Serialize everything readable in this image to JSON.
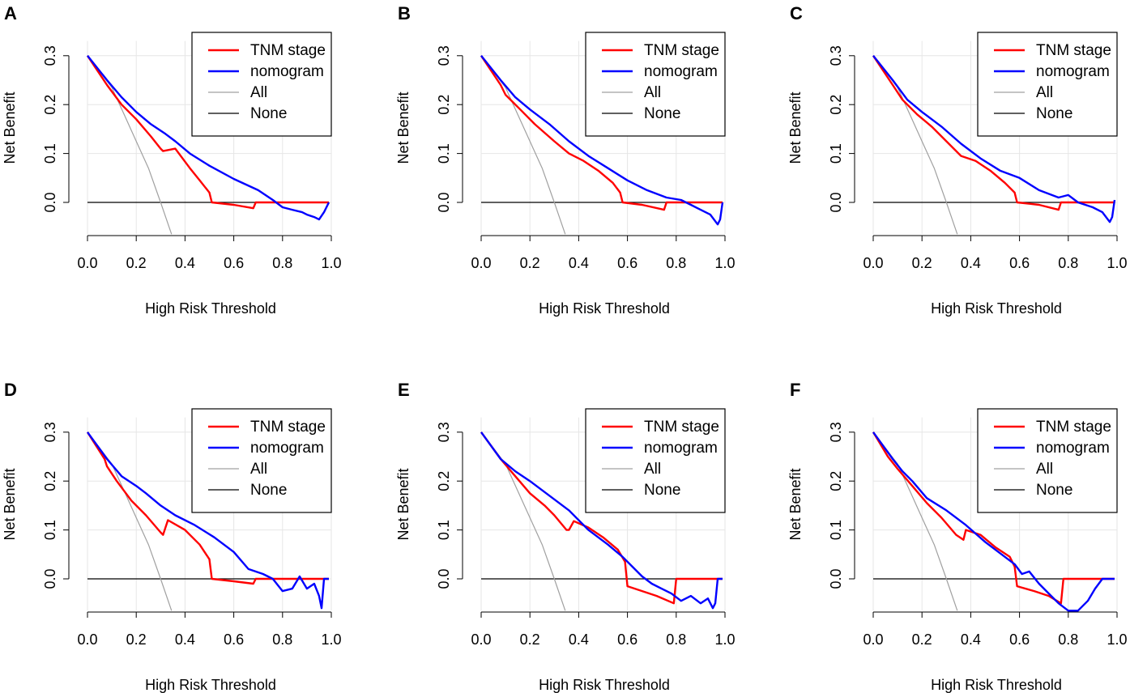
{
  "chart_data": [
    {
      "panel": "A",
      "type": "line",
      "xlabel": "High Risk Threshold",
      "ylabel": "Net Benefit",
      "xlim": [
        0,
        1
      ],
      "ylim": [
        -0.065,
        0.33
      ],
      "xticks": [
        "0.0",
        "0.2",
        "0.4",
        "0.6",
        "0.8",
        "1.0"
      ],
      "yticks": [
        "0.0",
        "0.1",
        "0.2",
        "0.3"
      ],
      "legend_position": "top-right",
      "series": [
        {
          "name": "TNM stage",
          "color": "#ff0000",
          "x": [
            0,
            0.08,
            0.14,
            0.2,
            0.26,
            0.3,
            0.31,
            0.36,
            0.42,
            0.46,
            0.5,
            0.51,
            0.6,
            0.68,
            0.69,
            0.75,
            0.85,
            0.99
          ],
          "y": [
            0.3,
            0.24,
            0.2,
            0.17,
            0.135,
            0.11,
            0.105,
            0.11,
            0.07,
            0.045,
            0.02,
            0,
            -0.005,
            -0.012,
            0,
            0,
            0,
            0
          ]
        },
        {
          "name": "nomogram",
          "color": "#0000ff",
          "x": [
            0,
            0.08,
            0.14,
            0.2,
            0.26,
            0.32,
            0.36,
            0.42,
            0.5,
            0.6,
            0.7,
            0.76,
            0.8,
            0.84,
            0.88,
            0.9,
            0.93,
            0.95,
            0.97,
            0.99
          ],
          "y": [
            0.3,
            0.25,
            0.215,
            0.185,
            0.16,
            0.14,
            0.125,
            0.1,
            0.075,
            0.048,
            0.025,
            0.005,
            -0.01,
            -0.015,
            -0.02,
            -0.025,
            -0.03,
            -0.035,
            -0.02,
            0
          ]
        },
        {
          "name": "All",
          "color": "#a0a0a0",
          "x": [
            0,
            0.1,
            0.15,
            0.2,
            0.25,
            0.3,
            0.345
          ],
          "y": [
            0.3,
            0.235,
            0.18,
            0.125,
            0.07,
            0.0,
            -0.065
          ]
        },
        {
          "name": "None",
          "color": "#000000",
          "x": [
            0,
            0.99
          ],
          "y": [
            0,
            0
          ]
        }
      ]
    },
    {
      "panel": "B",
      "type": "line",
      "xlabel": "High Risk Threshold",
      "ylabel": "Net Benefit",
      "xlim": [
        0,
        1
      ],
      "ylim": [
        -0.065,
        0.33
      ],
      "xticks": [
        "0.0",
        "0.2",
        "0.4",
        "0.6",
        "0.8",
        "1.0"
      ],
      "yticks": [
        "0.0",
        "0.1",
        "0.2",
        "0.3"
      ],
      "legend_position": "top-right",
      "series": [
        {
          "name": "TNM stage",
          "color": "#ff0000",
          "x": [
            0,
            0.08,
            0.1,
            0.16,
            0.22,
            0.3,
            0.36,
            0.42,
            0.48,
            0.54,
            0.57,
            0.58,
            0.66,
            0.75,
            0.76,
            0.85,
            0.99
          ],
          "y": [
            0.3,
            0.24,
            0.22,
            0.19,
            0.16,
            0.125,
            0.1,
            0.085,
            0.065,
            0.04,
            0.02,
            0,
            -0.005,
            -0.015,
            0,
            0,
            0
          ]
        },
        {
          "name": "nomogram",
          "color": "#0000ff",
          "x": [
            0,
            0.08,
            0.14,
            0.2,
            0.28,
            0.36,
            0.44,
            0.52,
            0.6,
            0.68,
            0.76,
            0.82,
            0.86,
            0.9,
            0.94,
            0.97,
            0.98,
            0.99
          ],
          "y": [
            0.3,
            0.25,
            0.215,
            0.19,
            0.16,
            0.125,
            0.095,
            0.07,
            0.045,
            0.025,
            0.01,
            0.005,
            -0.005,
            -0.015,
            -0.025,
            -0.045,
            -0.035,
            0
          ]
        },
        {
          "name": "All",
          "color": "#a0a0a0",
          "x": [
            0,
            0.1,
            0.15,
            0.2,
            0.25,
            0.3,
            0.345
          ],
          "y": [
            0.3,
            0.235,
            0.18,
            0.125,
            0.07,
            0.0,
            -0.065
          ]
        },
        {
          "name": "None",
          "color": "#000000",
          "x": [
            0,
            0.99
          ],
          "y": [
            0,
            0
          ]
        }
      ]
    },
    {
      "panel": "C",
      "type": "line",
      "xlabel": "High Risk Threshold",
      "ylabel": "Net Benefit",
      "xlim": [
        0,
        1
      ],
      "ylim": [
        -0.065,
        0.33
      ],
      "xticks": [
        "0.0",
        "0.2",
        "0.4",
        "0.6",
        "0.8",
        "1.0"
      ],
      "yticks": [
        "0.0",
        "0.1",
        "0.2",
        "0.3"
      ],
      "legend_position": "top-right",
      "series": [
        {
          "name": "TNM stage",
          "color": "#ff0000",
          "x": [
            0,
            0.08,
            0.12,
            0.18,
            0.24,
            0.3,
            0.36,
            0.42,
            0.48,
            0.54,
            0.58,
            0.59,
            0.68,
            0.76,
            0.77,
            0.85,
            0.99
          ],
          "y": [
            0.3,
            0.24,
            0.21,
            0.18,
            0.155,
            0.125,
            0.095,
            0.085,
            0.065,
            0.04,
            0.02,
            0,
            -0.005,
            -0.015,
            0,
            0,
            0
          ]
        },
        {
          "name": "nomogram",
          "color": "#0000ff",
          "x": [
            0,
            0.08,
            0.14,
            0.2,
            0.28,
            0.36,
            0.44,
            0.52,
            0.6,
            0.68,
            0.76,
            0.8,
            0.84,
            0.9,
            0.94,
            0.97,
            0.98,
            0.99
          ],
          "y": [
            0.3,
            0.25,
            0.21,
            0.185,
            0.155,
            0.12,
            0.09,
            0.065,
            0.05,
            0.025,
            0.01,
            0.015,
            0.0,
            -0.01,
            -0.02,
            -0.04,
            -0.03,
            0.005
          ]
        },
        {
          "name": "All",
          "color": "#a0a0a0",
          "x": [
            0,
            0.1,
            0.15,
            0.2,
            0.25,
            0.3,
            0.345
          ],
          "y": [
            0.3,
            0.235,
            0.18,
            0.125,
            0.07,
            0.0,
            -0.065
          ]
        },
        {
          "name": "None",
          "color": "#000000",
          "x": [
            0,
            0.99
          ],
          "y": [
            0,
            0
          ]
        }
      ]
    },
    {
      "panel": "D",
      "type": "line",
      "xlabel": "High Risk Threshold",
      "ylabel": "Net Benefit",
      "xlim": [
        0,
        1
      ],
      "ylim": [
        -0.065,
        0.33
      ],
      "xticks": [
        "0.0",
        "0.2",
        "0.4",
        "0.6",
        "0.8",
        "1.0"
      ],
      "yticks": [
        "0.0",
        "0.1",
        "0.2",
        "0.3"
      ],
      "legend_position": "top-right",
      "series": [
        {
          "name": "TNM stage",
          "color": "#ff0000",
          "x": [
            0,
            0.07,
            0.08,
            0.12,
            0.18,
            0.24,
            0.3,
            0.31,
            0.33,
            0.4,
            0.46,
            0.5,
            0.51,
            0.6,
            0.68,
            0.69,
            0.76,
            0.85,
            0.99
          ],
          "y": [
            0.3,
            0.245,
            0.23,
            0.2,
            0.16,
            0.13,
            0.095,
            0.09,
            0.12,
            0.1,
            0.07,
            0.04,
            0.0,
            -0.005,
            -0.01,
            0,
            0,
            0,
            0
          ]
        },
        {
          "name": "nomogram",
          "color": "#0000ff",
          "x": [
            0,
            0.08,
            0.14,
            0.2,
            0.24,
            0.3,
            0.36,
            0.44,
            0.52,
            0.6,
            0.66,
            0.72,
            0.76,
            0.8,
            0.84,
            0.87,
            0.9,
            0.93,
            0.95,
            0.96,
            0.97,
            0.99
          ],
          "y": [
            0.3,
            0.245,
            0.21,
            0.19,
            0.175,
            0.15,
            0.13,
            0.11,
            0.085,
            0.055,
            0.02,
            0.01,
            0.0,
            -0.025,
            -0.02,
            0.005,
            -0.02,
            -0.01,
            -0.035,
            -0.06,
            0.0,
            0.0
          ]
        },
        {
          "name": "All",
          "color": "#a0a0a0",
          "x": [
            0,
            0.1,
            0.15,
            0.2,
            0.25,
            0.3,
            0.345
          ],
          "y": [
            0.3,
            0.235,
            0.18,
            0.125,
            0.07,
            0.0,
            -0.065
          ]
        },
        {
          "name": "None",
          "color": "#000000",
          "x": [
            0,
            0.99
          ],
          "y": [
            0,
            0
          ]
        }
      ]
    },
    {
      "panel": "E",
      "type": "line",
      "xlabel": "High Risk Threshold",
      "ylabel": "Net Benefit",
      "xlim": [
        0,
        1
      ],
      "ylim": [
        -0.065,
        0.33
      ],
      "xticks": [
        "0.0",
        "0.2",
        "0.4",
        "0.6",
        "0.8",
        "1.0"
      ],
      "yticks": [
        "0.0",
        "0.1",
        "0.2",
        "0.3"
      ],
      "legend_position": "top-right",
      "series": [
        {
          "name": "TNM stage",
          "color": "#ff0000",
          "x": [
            0,
            0.08,
            0.14,
            0.2,
            0.26,
            0.3,
            0.35,
            0.36,
            0.38,
            0.44,
            0.5,
            0.56,
            0.59,
            0.6,
            0.66,
            0.72,
            0.79,
            0.8,
            0.88,
            0.99
          ],
          "y": [
            0.3,
            0.245,
            0.21,
            0.175,
            0.15,
            0.13,
            0.1,
            0.1,
            0.118,
            0.105,
            0.085,
            0.06,
            0.035,
            -0.015,
            -0.025,
            -0.035,
            -0.05,
            0,
            0,
            0
          ]
        },
        {
          "name": "nomogram",
          "color": "#0000ff",
          "x": [
            0,
            0.08,
            0.14,
            0.2,
            0.28,
            0.36,
            0.44,
            0.52,
            0.58,
            0.62,
            0.66,
            0.7,
            0.74,
            0.78,
            0.82,
            0.86,
            0.9,
            0.93,
            0.95,
            0.96,
            0.97,
            0.99
          ],
          "y": [
            0.3,
            0.245,
            0.22,
            0.2,
            0.17,
            0.14,
            0.1,
            0.07,
            0.045,
            0.025,
            0.005,
            -0.01,
            -0.02,
            -0.03,
            -0.045,
            -0.035,
            -0.05,
            -0.04,
            -0.06,
            -0.05,
            0.0,
            0.0
          ]
        },
        {
          "name": "All",
          "color": "#a0a0a0",
          "x": [
            0,
            0.1,
            0.15,
            0.2,
            0.25,
            0.3,
            0.345
          ],
          "y": [
            0.3,
            0.235,
            0.18,
            0.125,
            0.07,
            0.0,
            -0.065
          ]
        },
        {
          "name": "None",
          "color": "#000000",
          "x": [
            0,
            0.99
          ],
          "y": [
            0,
            0
          ]
        }
      ]
    },
    {
      "panel": "F",
      "type": "line",
      "xlabel": "High Risk Threshold",
      "ylabel": "Net Benefit",
      "xlim": [
        0,
        1
      ],
      "ylim": [
        -0.065,
        0.33
      ],
      "xticks": [
        "0.0",
        "0.2",
        "0.4",
        "0.6",
        "0.8",
        "1.0"
      ],
      "yticks": [
        "0.0",
        "0.1",
        "0.2",
        "0.3"
      ],
      "legend_position": "top-right",
      "series": [
        {
          "name": "TNM stage",
          "color": "#ff0000",
          "x": [
            0,
            0.06,
            0.1,
            0.16,
            0.22,
            0.28,
            0.34,
            0.37,
            0.38,
            0.44,
            0.5,
            0.56,
            0.58,
            0.59,
            0.66,
            0.72,
            0.77,
            0.78,
            0.88,
            0.99
          ],
          "y": [
            0.3,
            0.25,
            0.225,
            0.19,
            0.155,
            0.125,
            0.09,
            0.08,
            0.1,
            0.09,
            0.065,
            0.045,
            0.025,
            -0.015,
            -0.025,
            -0.035,
            -0.05,
            0,
            0,
            0
          ]
        },
        {
          "name": "nomogram",
          "color": "#0000ff",
          "x": [
            0,
            0.08,
            0.12,
            0.16,
            0.22,
            0.3,
            0.38,
            0.46,
            0.54,
            0.58,
            0.61,
            0.64,
            0.68,
            0.72,
            0.76,
            0.8,
            0.84,
            0.88,
            0.91,
            0.94,
            0.96,
            0.99
          ],
          "y": [
            0.3,
            0.245,
            0.22,
            0.2,
            0.165,
            0.14,
            0.11,
            0.075,
            0.045,
            0.03,
            0.01,
            0.015,
            -0.01,
            -0.03,
            -0.05,
            -0.065,
            -0.065,
            -0.045,
            -0.02,
            0.0,
            0.0,
            0.0
          ]
        },
        {
          "name": "All",
          "color": "#a0a0a0",
          "x": [
            0,
            0.1,
            0.15,
            0.2,
            0.25,
            0.3,
            0.345
          ],
          "y": [
            0.3,
            0.235,
            0.18,
            0.125,
            0.07,
            0.0,
            -0.065
          ]
        },
        {
          "name": "None",
          "color": "#000000",
          "x": [
            0,
            0.99
          ],
          "y": [
            0,
            0
          ]
        }
      ]
    }
  ]
}
